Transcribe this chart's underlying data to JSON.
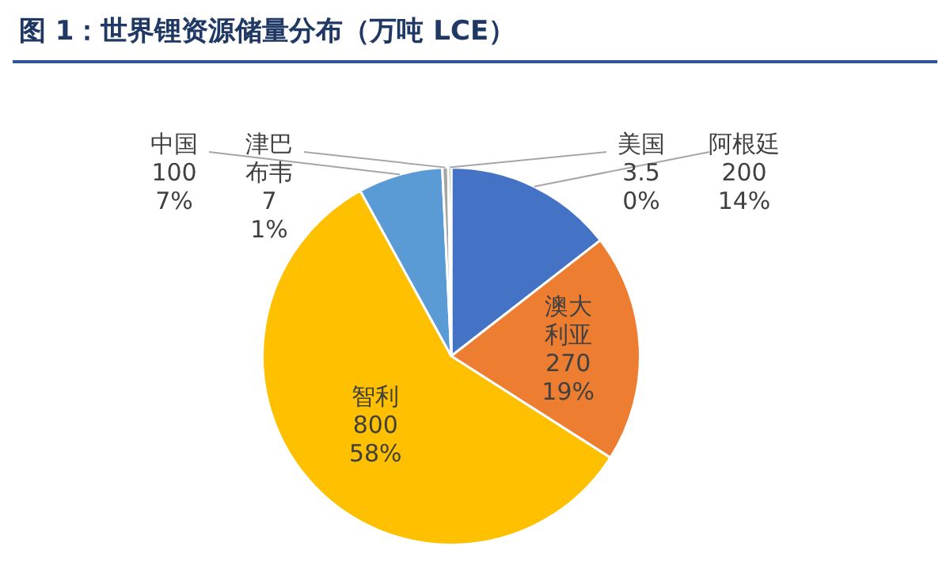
{
  "chart_data": {
    "type": "pie",
    "title": "图 1：世界锂资源储量分布（万吨 LCE）",
    "categories": [
      "阿根廷",
      "澳大利亚",
      "智利",
      "中国",
      "津巴布韦",
      "美国"
    ],
    "values": [
      200,
      270,
      800,
      100,
      7,
      3.5
    ],
    "colors": [
      "#4472c4",
      "#ed7d31",
      "#ffc000",
      "#5b9bd5",
      "#a5a5a5",
      "#70ad47"
    ],
    "value_labels": [
      "200\n14%",
      "270\n19%",
      "800\n58%",
      "100\n7%",
      "7\n1%",
      "3.5\n0%"
    ],
    "legend": false
  }
}
